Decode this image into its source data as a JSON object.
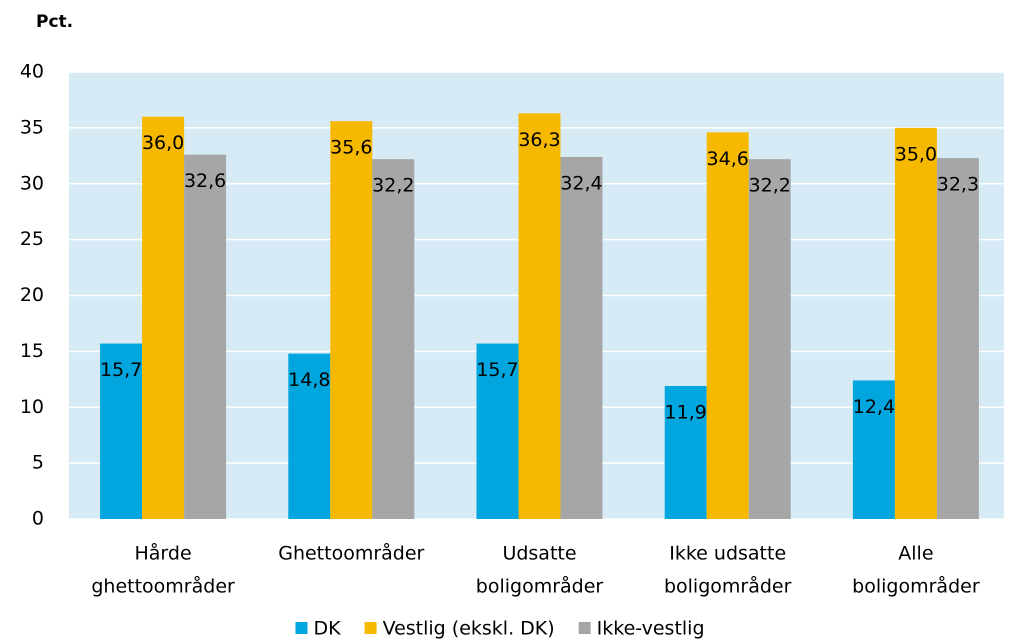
{
  "chart_data": {
    "type": "bar",
    "ylabel": "Pct.",
    "categories": [
      [
        "Hårde",
        "ghettoområder"
      ],
      [
        "Ghettoområder"
      ],
      [
        "Udsatte",
        "boligområder"
      ],
      [
        "Ikke udsatte",
        "boligområder"
      ],
      [
        "Alle",
        "boligområder"
      ]
    ],
    "series": [
      {
        "name": "DK",
        "color": "#00a6dd",
        "values": [
          15.7,
          14.8,
          15.7,
          11.9,
          12.4
        ],
        "value_labels": [
          "15,7",
          "14,8",
          "15,7",
          "11,9",
          "12,4"
        ]
      },
      {
        "name": "Vestlig (ekskl. DK)",
        "color": "#f7b800",
        "values": [
          36.0,
          35.6,
          36.3,
          34.6,
          35.0
        ],
        "value_labels": [
          "36,0",
          "35,6",
          "36,3",
          "34,6",
          "35,0"
        ]
      },
      {
        "name": "Ikke-vestlig",
        "color": "#a6a6a6",
        "values": [
          32.6,
          32.2,
          32.4,
          32.2,
          32.3
        ],
        "value_labels": [
          "32,6",
          "32,2",
          "32,4",
          "32,2",
          "32,3"
        ]
      }
    ],
    "ylim": [
      0,
      40
    ],
    "yticks": [
      0,
      5,
      10,
      15,
      20,
      25,
      30,
      35,
      40
    ],
    "grid": true,
    "legend": "bottom"
  }
}
